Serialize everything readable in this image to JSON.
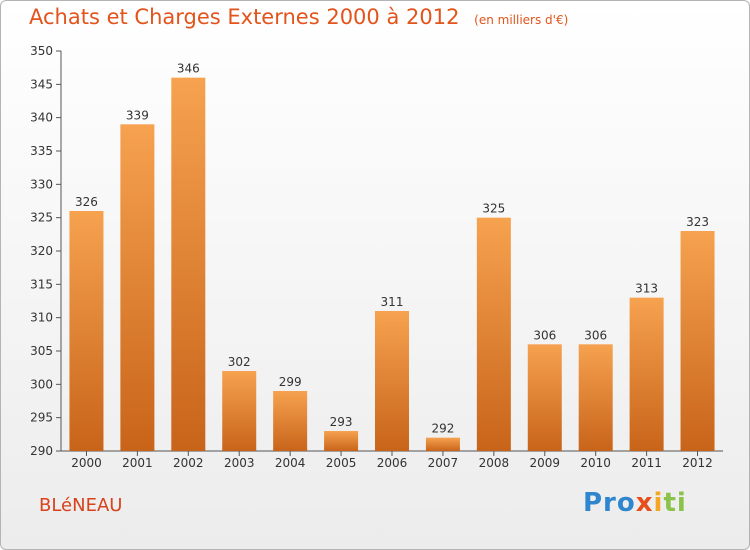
{
  "header": {
    "title": "Achats et Charges Externes 2000 à 2012",
    "unit": "(en milliers d'€)"
  },
  "footer": {
    "town": "BLéNEAU",
    "logo_parts": [
      "Pro",
      "x",
      "i",
      "ti"
    ]
  },
  "colors": {
    "bar_light": "#f6a24f",
    "bar_dark": "#c8641a",
    "title": "#e2541b",
    "axis": "#555555"
  },
  "chart_data": {
    "type": "bar",
    "title": "Achats et Charges Externes 2000 à 2012",
    "categories": [
      "2000",
      "2001",
      "2002",
      "2003",
      "2004",
      "2005",
      "2006",
      "2007",
      "2008",
      "2009",
      "2010",
      "2011",
      "2012"
    ],
    "values": [
      326,
      339,
      346,
      302,
      299,
      293,
      311,
      292,
      325,
      306,
      306,
      313,
      323
    ],
    "ylim": [
      290,
      350
    ],
    "yticks": [
      290,
      295,
      300,
      305,
      310,
      315,
      320,
      325,
      330,
      335,
      340,
      345,
      350
    ],
    "grid": false,
    "data_labels": true
  }
}
